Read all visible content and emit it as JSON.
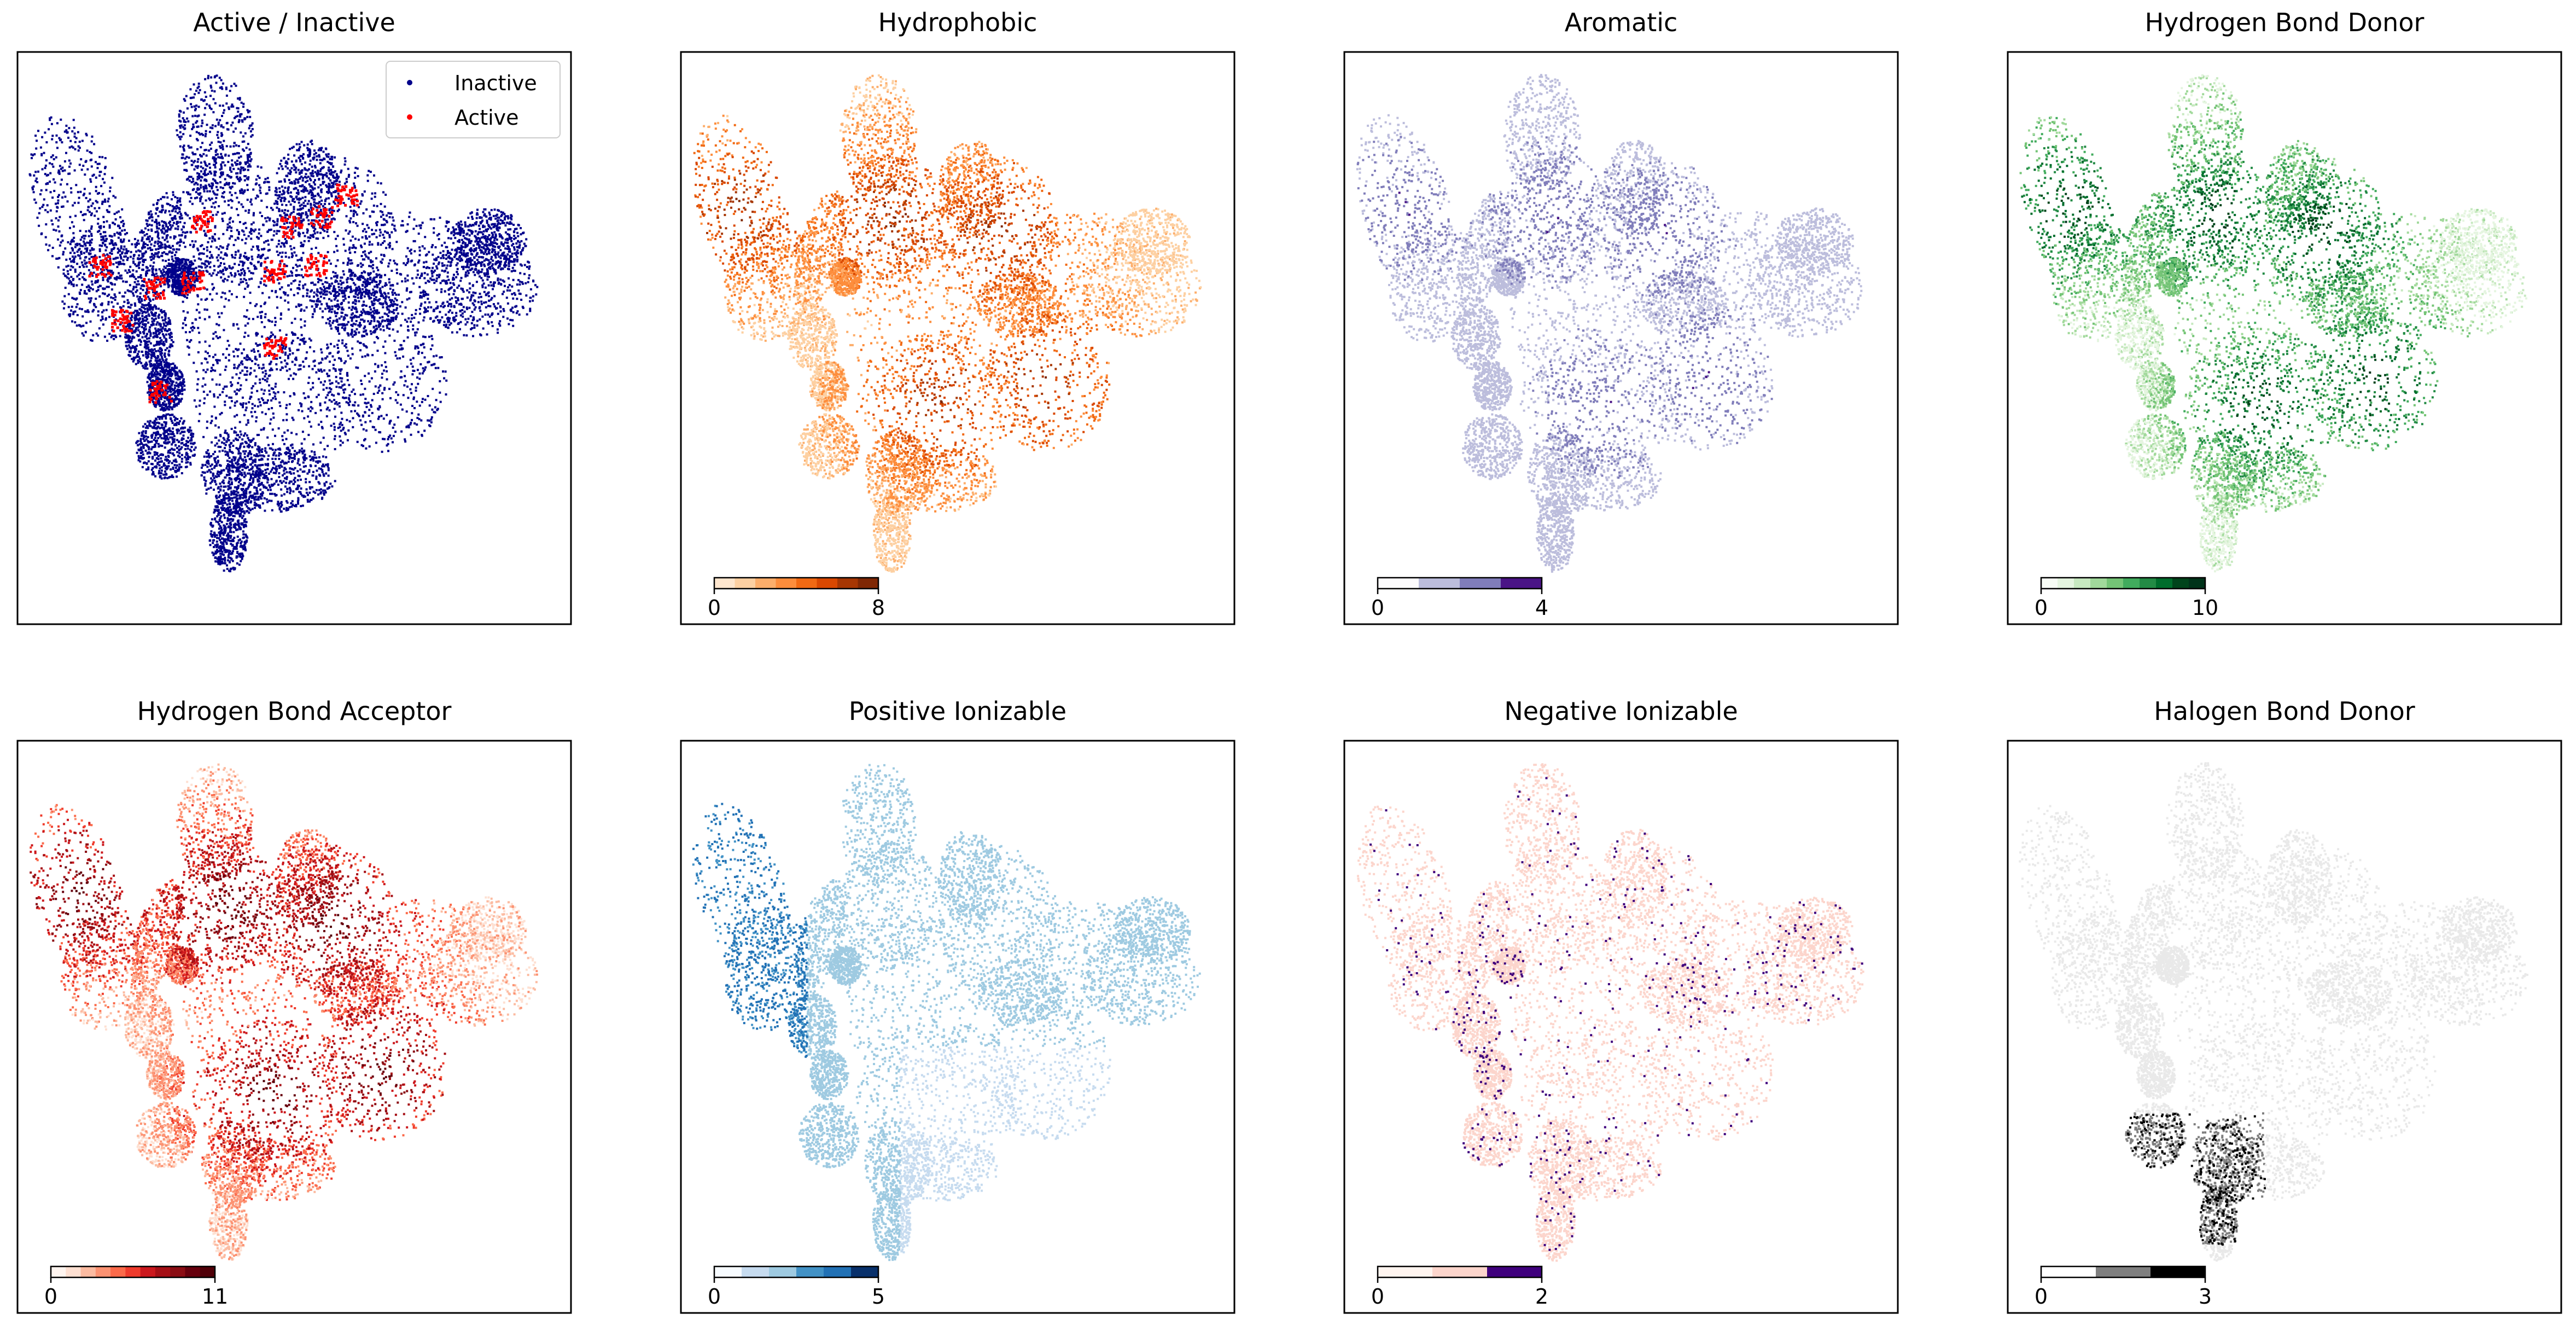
{
  "chart_data": [
    {
      "type": "scatter",
      "title": "Active / Inactive",
      "xlabel": "",
      "ylabel": "",
      "axes_ticks": false,
      "legend": {
        "placement": "top-right",
        "entries": [
          {
            "label": "Inactive",
            "color": "#00008b"
          },
          {
            "label": "Active",
            "color": "#ff0000"
          }
        ]
      },
      "series": [
        {
          "name": "Inactive",
          "color": "#00008b"
        },
        {
          "name": "Active",
          "color": "#ff0000"
        }
      ]
    },
    {
      "type": "scatter",
      "title": "Hydrophobic",
      "xlabel": "",
      "ylabel": "",
      "axes_ticks": false,
      "colorbar": {
        "min_label": "0",
        "max_label": "8",
        "colors": [
          "#fee6ce",
          "#fdd0a2",
          "#fdae6b",
          "#fd8d3c",
          "#f16913",
          "#d94801",
          "#a63603",
          "#7f2704"
        ]
      }
    },
    {
      "type": "scatter",
      "title": "Aromatic",
      "xlabel": "",
      "ylabel": "",
      "axes_ticks": false,
      "colorbar": {
        "min_label": "0",
        "max_label": "4",
        "colors": [
          "#fcfbfd",
          "#bcbddc",
          "#807dba",
          "#4a1486"
        ]
      }
    },
    {
      "type": "scatter",
      "title": "Hydrogen Bond Donor",
      "xlabel": "",
      "ylabel": "",
      "axes_ticks": false,
      "colorbar": {
        "min_label": "0",
        "max_label": "10",
        "colors": [
          "#f7fcf5",
          "#e5f5e0",
          "#c7e9c0",
          "#a1d99b",
          "#74c476",
          "#41ab5d",
          "#238b45",
          "#006d2c",
          "#00441b",
          "#00331a"
        ]
      }
    },
    {
      "type": "scatter",
      "title": "Hydrogen Bond Acceptor",
      "xlabel": "",
      "ylabel": "",
      "axes_ticks": false,
      "colorbar": {
        "min_label": "0",
        "max_label": "11",
        "colors": [
          "#fff5f0",
          "#fee0d2",
          "#fcbba1",
          "#fc9272",
          "#fb6a4a",
          "#ef3b2c",
          "#cb181d",
          "#a50f15",
          "#8b0d14",
          "#67000d",
          "#500008"
        ]
      }
    },
    {
      "type": "scatter",
      "title": "Positive Ionizable",
      "xlabel": "",
      "ylabel": "",
      "axes_ticks": false,
      "colorbar": {
        "min_label": "0",
        "max_label": "5",
        "colors": [
          "#f7fbff",
          "#c6dbef",
          "#9ecae1",
          "#4292c6",
          "#2171b5",
          "#08306b"
        ]
      }
    },
    {
      "type": "scatter",
      "title": "Negative Ionizable",
      "xlabel": "",
      "ylabel": "",
      "axes_ticks": false,
      "colorbar": {
        "min_label": "0",
        "max_label": "2",
        "colors": [
          "#fff5f0",
          "#fcd5cc",
          "#3f007d"
        ]
      }
    },
    {
      "type": "scatter",
      "title": "Halogen Bond Donor",
      "xlabel": "",
      "ylabel": "",
      "axes_ticks": false,
      "colorbar": {
        "min_label": "0",
        "max_label": "3",
        "colors": [
          "#ffffff",
          "#7f7f7f",
          "#000000"
        ]
      }
    }
  ]
}
